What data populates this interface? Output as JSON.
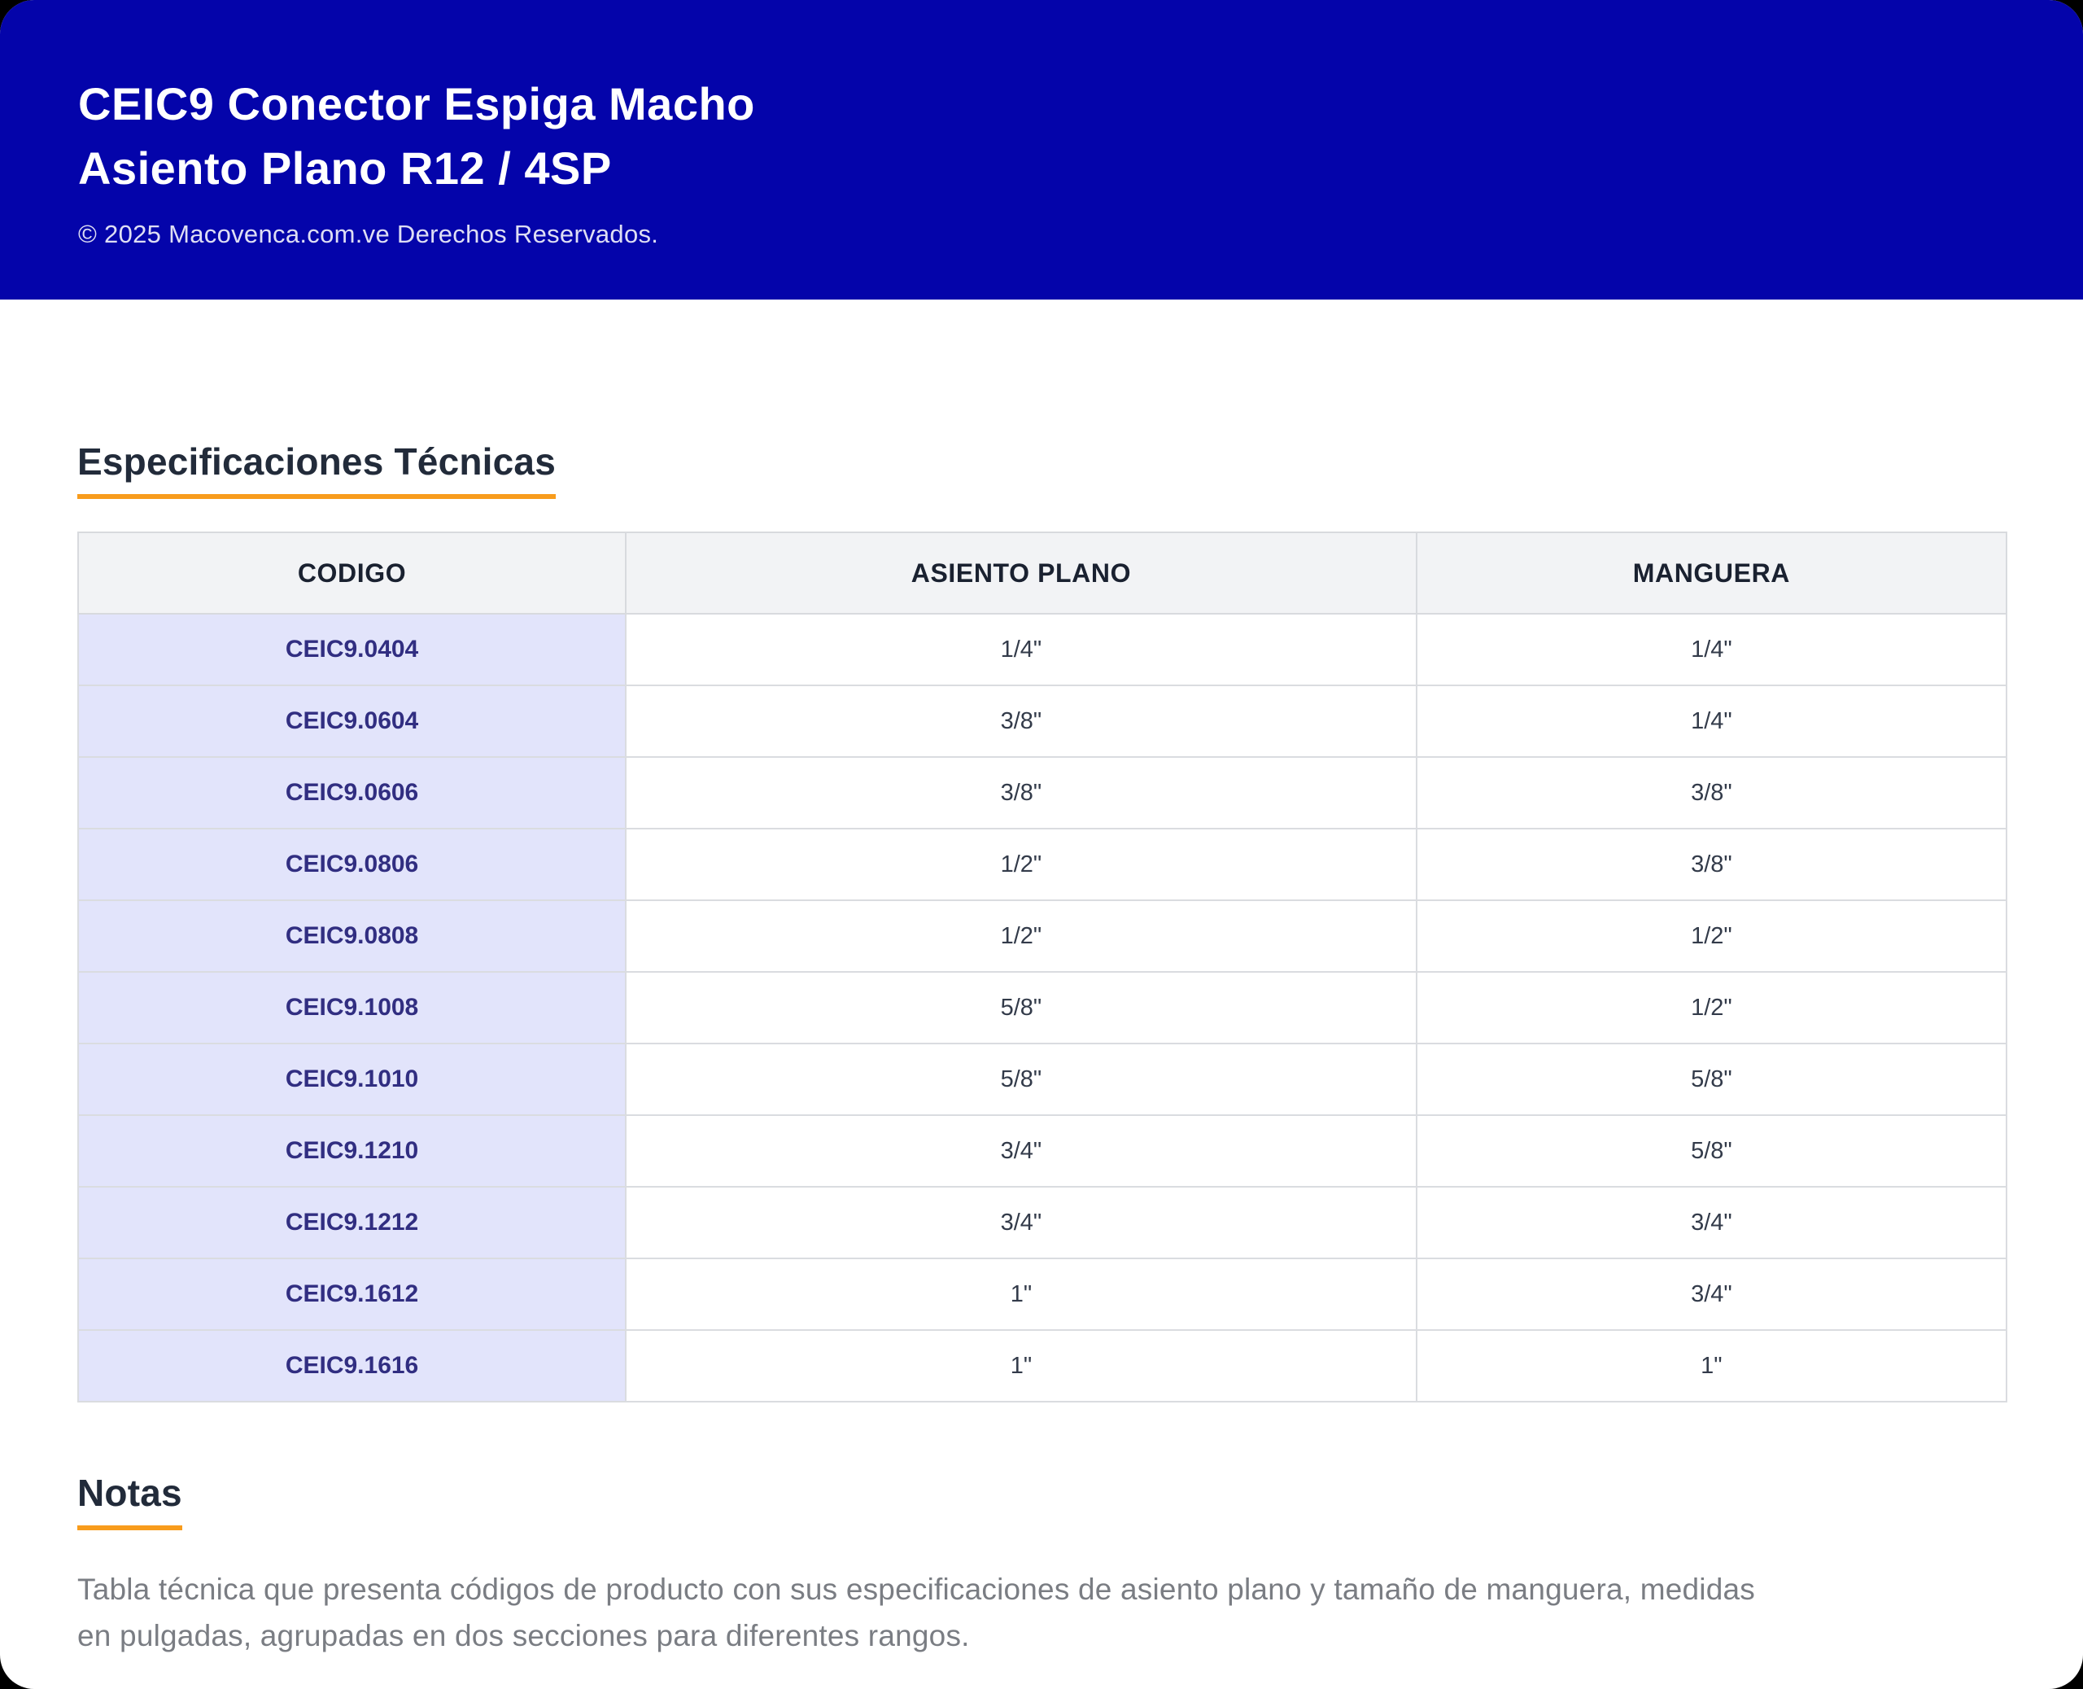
{
  "header": {
    "title_line1": "CEIC9 Conector Espiga Macho",
    "title_line2": "Asiento Plano R12 / 4SP",
    "copyright": "© 2025 Macovenca.com.ve Derechos Reservados."
  },
  "sections": {
    "specs_heading": "Especificaciones Técnicas",
    "notes_heading": "Notas",
    "notes_text": "Tabla técnica que presenta códigos de producto con sus especificaciones de asiento plano y tamaño de manguera, medidas en pulgadas, agrupadas en dos secciones para diferentes rangos."
  },
  "table": {
    "columns": [
      "CODIGO",
      "ASIENTO PLANO",
      "MANGUERA"
    ],
    "rows": [
      {
        "code": "CEIC9.0404",
        "asiento_plano": "1/4\"",
        "manguera": "1/4\""
      },
      {
        "code": "CEIC9.0604",
        "asiento_plano": "3/8\"",
        "manguera": "1/4\""
      },
      {
        "code": "CEIC9.0606",
        "asiento_plano": "3/8\"",
        "manguera": "3/8\""
      },
      {
        "code": "CEIC9.0806",
        "asiento_plano": "1/2\"",
        "manguera": "3/8\""
      },
      {
        "code": "CEIC9.0808",
        "asiento_plano": "1/2\"",
        "manguera": "1/2\""
      },
      {
        "code": "CEIC9.1008",
        "asiento_plano": "5/8\"",
        "manguera": "1/2\""
      },
      {
        "code": "CEIC9.1010",
        "asiento_plano": "5/8\"",
        "manguera": "5/8\""
      },
      {
        "code": "CEIC9.1210",
        "asiento_plano": "3/4\"",
        "manguera": "5/8\""
      },
      {
        "code": "CEIC9.1212",
        "asiento_plano": "3/4\"",
        "manguera": "3/4\""
      },
      {
        "code": "CEIC9.1612",
        "asiento_plano": "1\"",
        "manguera": "3/4\""
      },
      {
        "code": "CEIC9.1616",
        "asiento_plano": "1\"",
        "manguera": "1\""
      }
    ]
  },
  "colors": {
    "header_blue": "#0404aa",
    "accent_orange": "#f89c1c",
    "code_cell_lavender": "#e2e4fb",
    "table_header_gray": "#f2f3f5",
    "code_text_indigo": "#312e81",
    "heading_navy": "#222b3a",
    "notes_gray": "#7a7d83"
  }
}
